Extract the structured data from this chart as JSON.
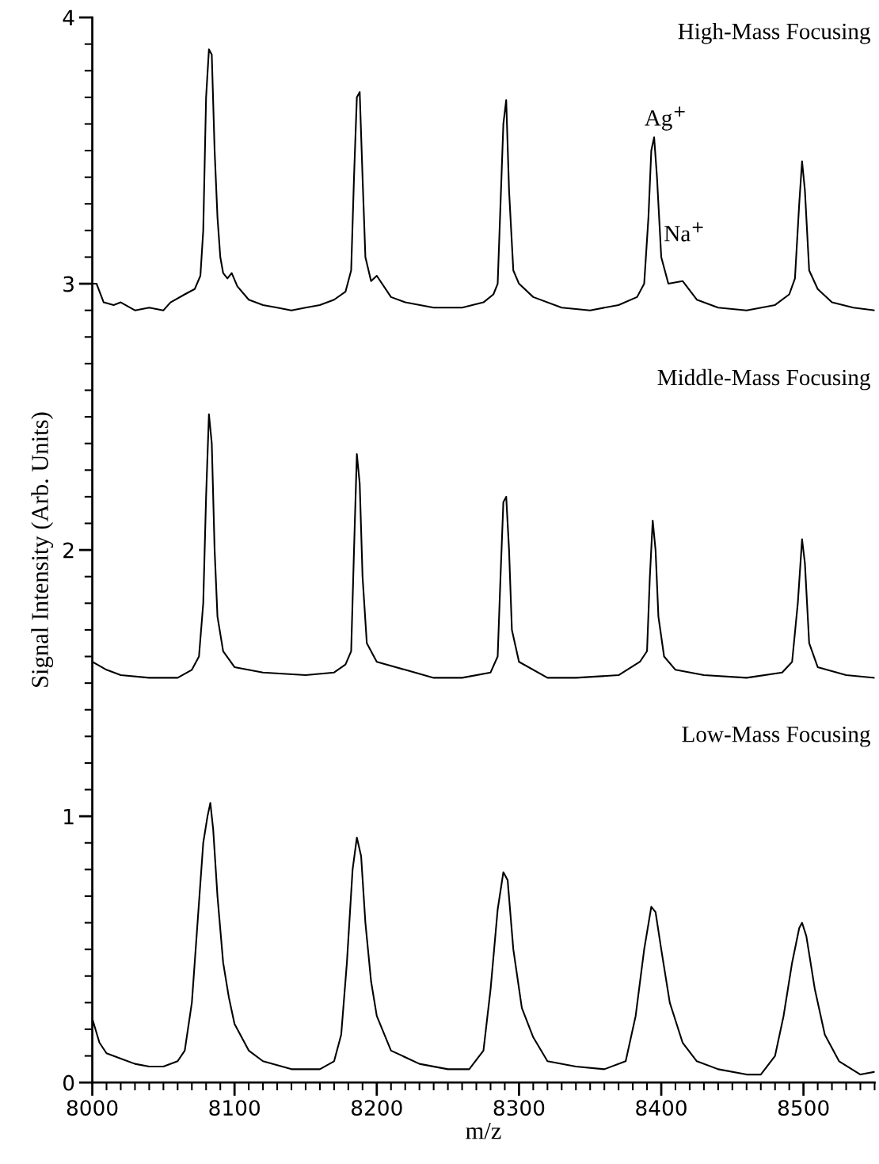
{
  "chart_data": {
    "type": "line",
    "xlabel": "m/z",
    "ylabel": "Signal Intensity (Arb. Units)",
    "xlim": [
      8000,
      8550
    ],
    "ylim": [
      0,
      4
    ],
    "xticks": [
      8000,
      {
        "value": 8010,
        "label": null
      },
      {
        "value": 8020,
        "label": null
      },
      {
        "value": 8030,
        "label": null
      },
      {
        "value": 8040,
        "label": null
      },
      {
        "value": 8050,
        "label": null
      },
      {
        "value": 8060,
        "label": null
      },
      {
        "value": 8070,
        "label": null
      },
      {
        "value": 8080,
        "label": null
      },
      {
        "value": 8090,
        "label": null
      },
      8100,
      {
        "value": 8110,
        "label": null
      },
      {
        "value": 8120,
        "label": null
      },
      {
        "value": 8130,
        "label": null
      },
      {
        "value": 8140,
        "label": null
      },
      {
        "value": 8150,
        "label": null
      },
      {
        "value": 8160,
        "label": null
      },
      {
        "value": 8170,
        "label": null
      },
      {
        "value": 8180,
        "label": null
      },
      {
        "value": 8190,
        "label": null
      },
      8200,
      {
        "value": 8210,
        "label": null
      },
      {
        "value": 8220,
        "label": null
      },
      {
        "value": 8230,
        "label": null
      },
      {
        "value": 8240,
        "label": null
      },
      {
        "value": 8250,
        "label": null
      },
      {
        "value": 8260,
        "label": null
      },
      {
        "value": 8270,
        "label": null
      },
      {
        "value": 8280,
        "label": null
      },
      {
        "value": 8290,
        "label": null
      },
      8300,
      {
        "value": 8310,
        "label": null
      },
      {
        "value": 8320,
        "label": null
      },
      {
        "value": 8330,
        "label": null
      },
      {
        "value": 8340,
        "label": null
      },
      {
        "value": 8350,
        "label": null
      },
      {
        "value": 8360,
        "label": null
      },
      {
        "value": 8370,
        "label": null
      },
      {
        "value": 8380,
        "label": null
      },
      {
        "value": 8390,
        "label": null
      },
      8400,
      {
        "value": 8410,
        "label": null
      },
      {
        "value": 8420,
        "label": null
      },
      {
        "value": 8430,
        "label": null
      },
      {
        "value": 8440,
        "label": null
      },
      {
        "value": 8450,
        "label": null
      },
      {
        "value": 8460,
        "label": null
      },
      {
        "value": 8470,
        "label": null
      },
      {
        "value": 8480,
        "label": null
      },
      {
        "value": 8490,
        "label": null
      },
      8500,
      {
        "value": 8510,
        "label": null
      },
      {
        "value": 8520,
        "label": null
      },
      {
        "value": 8530,
        "label": null
      },
      {
        "value": 8540,
        "label": null
      },
      {
        "value": 8550,
        "label": null
      }
    ],
    "yticks": [
      0,
      {
        "value": 0.1,
        "label": null
      },
      {
        "value": 0.2,
        "label": null
      },
      {
        "value": 0.3,
        "label": null
      },
      {
        "value": 0.4,
        "label": null
      },
      {
        "value": 0.5,
        "label": null
      },
      {
        "value": 0.6,
        "label": null
      },
      {
        "value": 0.7,
        "label": null
      },
      {
        "value": 0.8,
        "label": null
      },
      {
        "value": 0.9,
        "label": null
      },
      1,
      {
        "value": 1.1,
        "label": null
      },
      {
        "value": 1.2,
        "label": null
      },
      {
        "value": 1.3,
        "label": null
      },
      {
        "value": 1.4,
        "label": null
      },
      {
        "value": 1.5,
        "label": null
      },
      {
        "value": 1.6,
        "label": null
      },
      {
        "value": 1.7,
        "label": null
      },
      {
        "value": 1.8,
        "label": null
      },
      {
        "value": 1.9,
        "label": null
      },
      2,
      {
        "value": 2.1,
        "label": null
      },
      {
        "value": 2.2,
        "label": null
      },
      {
        "value": 2.3,
        "label": null
      },
      {
        "value": 2.4,
        "label": null
      },
      {
        "value": 2.5,
        "label": null
      },
      {
        "value": 2.6,
        "label": null
      },
      {
        "value": 2.7,
        "label": null
      },
      {
        "value": 2.8,
        "label": null
      },
      {
        "value": 2.9,
        "label": null
      },
      3,
      {
        "value": 3.1,
        "label": null
      },
      {
        "value": 3.2,
        "label": null
      },
      {
        "value": 3.3,
        "label": null
      },
      {
        "value": 3.4,
        "label": null
      },
      {
        "value": 3.5,
        "label": null
      },
      {
        "value": 3.6,
        "label": null
      },
      {
        "value": 3.7,
        "label": null
      },
      {
        "value": 3.8,
        "label": null
      },
      {
        "value": 3.9,
        "label": null
      },
      4
    ],
    "grid": false,
    "legend": false,
    "marker": "none",
    "line_style": "solid",
    "annotations": [
      "High-Mass Focusing",
      "Ag$^{+}$",
      "Na$^{+}$",
      "Middle-Mass Focusing",
      "Low-Mass Focusing"
    ],
    "series": [
      {
        "color": "#000000",
        "x": [
          8000,
          8003,
          8008,
          8015,
          8020,
          8030,
          8040,
          8050,
          8055,
          8065,
          8072,
          8076,
          8078,
          8080,
          8082,
          8084,
          8086,
          8088,
          8090,
          8092,
          8095,
          8098,
          8102,
          8110,
          8120,
          8130,
          8140,
          8150,
          8160,
          8170,
          8178,
          8182,
          8184,
          8186,
          8188,
          8190,
          8192,
          8196,
          8200,
          8210,
          8220,
          8240,
          8260,
          8275,
          8282,
          8285,
          8287,
          8289,
          8291,
          8293,
          8296,
          8300,
          8310,
          8330,
          8350,
          8370,
          8383,
          8388,
          8391,
          8393,
          8395,
          8397,
          8400,
          8405,
          8415,
          8425,
          8440,
          8460,
          8480,
          8490,
          8494,
          8497,
          8499,
          8501,
          8504,
          8510,
          8520,
          8535,
          8550
        ],
        "values": [
          3.0,
          3.0,
          2.93,
          2.92,
          2.93,
          2.9,
          2.91,
          2.9,
          2.93,
          2.96,
          2.98,
          3.03,
          3.2,
          3.7,
          3.88,
          3.86,
          3.5,
          3.25,
          3.1,
          3.04,
          3.02,
          3.04,
          2.99,
          2.94,
          2.92,
          2.91,
          2.9,
          2.91,
          2.92,
          2.94,
          2.97,
          3.05,
          3.4,
          3.7,
          3.72,
          3.4,
          3.1,
          3.01,
          3.03,
          2.95,
          2.93,
          2.91,
          2.91,
          2.93,
          2.96,
          3.0,
          3.3,
          3.6,
          3.69,
          3.35,
          3.05,
          3.0,
          2.95,
          2.91,
          2.9,
          2.92,
          2.95,
          3.0,
          3.25,
          3.5,
          3.55,
          3.4,
          3.1,
          3.0,
          3.01,
          2.94,
          2.91,
          2.9,
          2.92,
          2.96,
          3.02,
          3.3,
          3.46,
          3.35,
          3.05,
          2.98,
          2.93,
          2.91,
          2.9
        ]
      },
      {
        "color": "#000000",
        "x": [
          8000,
          8010,
          8020,
          8040,
          8060,
          8070,
          8075,
          8078,
          8080,
          8082,
          8084,
          8086,
          8088,
          8092,
          8100,
          8120,
          8150,
          8170,
          8178,
          8182,
          8184,
          8186,
          8188,
          8190,
          8193,
          8200,
          8220,
          8240,
          8260,
          8280,
          8285,
          8287,
          8289,
          8291,
          8293,
          8295,
          8300,
          8320,
          8340,
          8370,
          8385,
          8390,
          8392,
          8394,
          8396,
          8398,
          8402,
          8410,
          8430,
          8460,
          8485,
          8492,
          8496,
          8499,
          8501,
          8504,
          8510,
          8530,
          8550
        ],
        "values": [
          1.58,
          1.55,
          1.53,
          1.52,
          1.52,
          1.55,
          1.6,
          1.8,
          2.2,
          2.51,
          2.4,
          2.0,
          1.75,
          1.62,
          1.56,
          1.54,
          1.53,
          1.54,
          1.57,
          1.62,
          2.0,
          2.36,
          2.25,
          1.9,
          1.65,
          1.58,
          1.55,
          1.52,
          1.52,
          1.54,
          1.6,
          1.9,
          2.18,
          2.2,
          2.0,
          1.7,
          1.58,
          1.52,
          1.52,
          1.53,
          1.58,
          1.62,
          1.9,
          2.11,
          2.0,
          1.75,
          1.6,
          1.55,
          1.53,
          1.52,
          1.54,
          1.58,
          1.8,
          2.04,
          1.95,
          1.65,
          1.56,
          1.53,
          1.52
        ]
      },
      {
        "color": "#000000",
        "x": [
          8000,
          8005,
          8010,
          8020,
          8030,
          8040,
          8050,
          8060,
          8065,
          8070,
          8074,
          8078,
          8081,
          8083,
          8085,
          8088,
          8092,
          8096,
          8100,
          8110,
          8120,
          8140,
          8160,
          8170,
          8175,
          8179,
          8183,
          8186,
          8189,
          8192,
          8196,
          8200,
          8210,
          8230,
          8250,
          8265,
          8275,
          8280,
          8285,
          8289,
          8292,
          8296,
          8302,
          8310,
          8320,
          8340,
          8360,
          8375,
          8382,
          8388,
          8393,
          8396,
          8400,
          8406,
          8415,
          8425,
          8440,
          8460,
          8470,
          8480,
          8486,
          8492,
          8497,
          8499,
          8502,
          8508,
          8515,
          8525,
          8540,
          8550
        ],
        "values": [
          0.24,
          0.15,
          0.11,
          0.09,
          0.07,
          0.06,
          0.06,
          0.08,
          0.12,
          0.3,
          0.6,
          0.9,
          1.0,
          1.05,
          0.95,
          0.7,
          0.45,
          0.32,
          0.22,
          0.12,
          0.08,
          0.05,
          0.05,
          0.08,
          0.18,
          0.45,
          0.8,
          0.92,
          0.85,
          0.6,
          0.38,
          0.25,
          0.12,
          0.07,
          0.05,
          0.05,
          0.12,
          0.35,
          0.65,
          0.79,
          0.76,
          0.5,
          0.28,
          0.17,
          0.08,
          0.06,
          0.05,
          0.08,
          0.25,
          0.5,
          0.66,
          0.64,
          0.5,
          0.3,
          0.15,
          0.08,
          0.05,
          0.03,
          0.03,
          0.1,
          0.25,
          0.45,
          0.58,
          0.6,
          0.55,
          0.35,
          0.18,
          0.08,
          0.03,
          0.04
        ]
      }
    ]
  }
}
